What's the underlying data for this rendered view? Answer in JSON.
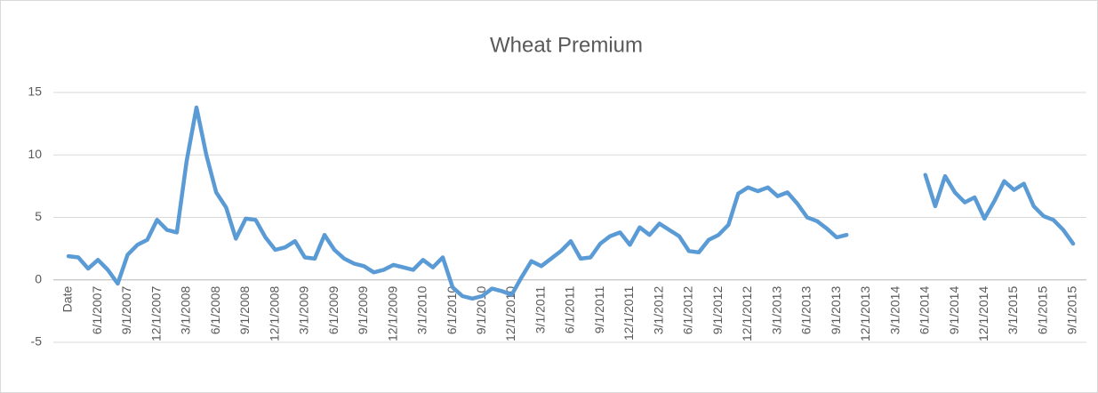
{
  "chart_data": {
    "type": "line",
    "title": "Wheat Premium",
    "categories": [
      "Date",
      null,
      null,
      "6/1/2007",
      null,
      null,
      "9/1/2007",
      null,
      null,
      "12/1/2007",
      null,
      null,
      "3/1/2008",
      null,
      null,
      "6/1/2008",
      null,
      null,
      "9/1/2008",
      null,
      null,
      "12/1/2008",
      null,
      null,
      "3/1/2009",
      null,
      null,
      "6/1/2009",
      null,
      null,
      "9/1/2009",
      null,
      null,
      "12/1/2009",
      null,
      null,
      "3/1/2010",
      null,
      null,
      "6/1/2010",
      null,
      null,
      "9/1/2010",
      null,
      null,
      "12/1/2010",
      null,
      null,
      "3/1/2011",
      null,
      null,
      "6/1/2011",
      null,
      null,
      "9/1/2011",
      null,
      null,
      "12/1/2011",
      null,
      null,
      "3/1/2012",
      null,
      null,
      "6/1/2012",
      null,
      null,
      "9/1/2012",
      null,
      null,
      "12/1/2012",
      null,
      null,
      "3/1/2013",
      null,
      null,
      "6/1/2013",
      null,
      null,
      "9/1/2013",
      null,
      null,
      "12/1/2013",
      null,
      null,
      "3/1/2014",
      null,
      null,
      "6/1/2014",
      null,
      null,
      "9/1/2014",
      null,
      null,
      "12/1/2014",
      null,
      null,
      "3/1/2015",
      null,
      null,
      "6/1/2015",
      null,
      null,
      "9/1/2015"
    ],
    "values": [
      1.9,
      1.8,
      0.9,
      1.6,
      0.8,
      -0.3,
      2.0,
      2.8,
      3.2,
      4.8,
      4.0,
      3.8,
      9.5,
      13.8,
      10.0,
      7.0,
      5.8,
      3.3,
      4.9,
      4.8,
      3.4,
      2.4,
      2.6,
      3.1,
      1.8,
      1.7,
      3.6,
      2.4,
      1.7,
      1.3,
      1.1,
      0.6,
      0.8,
      1.2,
      1.0,
      0.8,
      1.6,
      1.0,
      1.8,
      -0.6,
      -1.3,
      -1.5,
      -1.3,
      -0.7,
      -0.9,
      -1.2,
      0.2,
      1.5,
      1.1,
      1.7,
      2.3,
      3.1,
      1.7,
      1.8,
      2.9,
      3.5,
      3.8,
      2.8,
      4.2,
      3.6,
      4.5,
      4.0,
      3.5,
      2.3,
      2.2,
      3.2,
      3.6,
      4.4,
      6.9,
      7.4,
      7.1,
      7.4,
      6.7,
      7.0,
      6.1,
      5.0,
      4.7,
      4.1,
      3.4,
      3.6,
      null,
      null,
      null,
      null,
      null,
      null,
      null,
      8.4,
      5.9,
      8.3,
      7.0,
      6.2,
      6.6,
      4.9,
      6.3,
      7.9,
      7.2,
      7.7,
      5.9,
      5.1,
      4.8,
      4.0,
      2.9
    ],
    "color": "#5b9bd5",
    "ylim": [
      -5,
      15
    ],
    "yticks": [
      -5,
      0,
      5,
      10,
      15
    ],
    "grid": true
  }
}
